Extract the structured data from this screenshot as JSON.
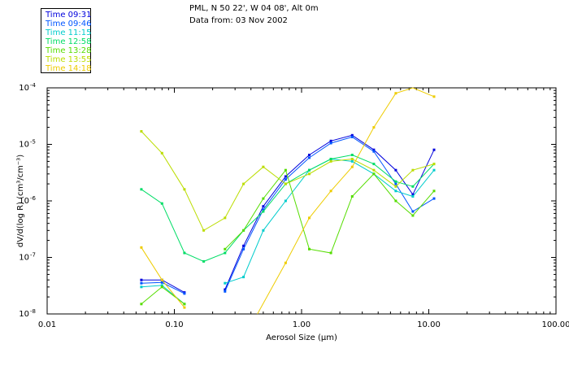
{
  "header": {
    "location": "PML, N 50 22', W 04 08', Alt 0m",
    "date": "Data from: 03 Nov 2002"
  },
  "chart_data": {
    "type": "line",
    "title": "PML, N 50 22', W 04 08', Alt 0m",
    "subtitle": "Data from: 03 Nov 2002",
    "xlabel": "Aerosol Size (µm)",
    "ylabel": "dV/d(log R) (cm³/cm⁻³)",
    "xscale": "log",
    "yscale": "log",
    "xlim": [
      0.01,
      100
    ],
    "ylim": [
      1e-08,
      0.0001
    ],
    "x_tick_labels": [
      "0.01",
      "0.10",
      "1.00",
      "10.00",
      "100.00"
    ],
    "y_tick_labels": [
      {
        "base": "10",
        "exp": "-8"
      },
      {
        "base": "10",
        "exp": "-7"
      },
      {
        "base": "10",
        "exp": "-6"
      },
      {
        "base": "10",
        "exp": "-5"
      },
      {
        "base": "10",
        "exp": "-4"
      }
    ],
    "legend_position": "top-left",
    "series": [
      {
        "name": "Time 09:31",
        "color": "#0000dd",
        "segments": [
          {
            "x": [
              0.055,
              0.08,
              0.12
            ],
            "y": [
              4e-08,
              4e-08,
              2.4e-08
            ]
          },
          {
            "x": [
              0.25,
              0.35,
              0.5,
              0.75,
              1.15,
              1.7,
              2.5,
              3.7,
              5.5,
              7.5,
              11
            ],
            "y": [
              2.7e-08,
              1.6e-07,
              8e-07,
              2.7e-06,
              6.5e-06,
              1.15e-05,
              1.45e-05,
              8e-06,
              3.5e-06,
              1.3e-06,
              8e-06
            ]
          }
        ]
      },
      {
        "name": "Time 09:46",
        "color": "#0055ff",
        "segments": [
          {
            "x": [
              0.055,
              0.08,
              0.12
            ],
            "y": [
              3.5e-08,
              3.6e-08,
              2.3e-08
            ]
          },
          {
            "x": [
              0.25,
              0.35,
              0.5,
              0.75,
              1.15,
              1.7,
              2.5,
              3.7,
              5.5,
              7.5,
              11
            ],
            "y": [
              2.5e-08,
              1.4e-07,
              7e-07,
              2.4e-06,
              5.8e-06,
              1.05e-05,
              1.35e-05,
              7.5e-06,
              2e-06,
              6.5e-07,
              1.1e-06
            ]
          }
        ]
      },
      {
        "name": "Time 11:15",
        "color": "#00cccc",
        "segments": [
          {
            "x": [
              0.055,
              0.08,
              0.12
            ],
            "y": [
              3e-08,
              3.2e-08,
              1.5e-08
            ]
          },
          {
            "x": [
              0.25,
              0.35,
              0.5,
              0.75,
              1.15,
              1.7,
              2.5,
              3.7,
              5.5,
              7.5,
              11
            ],
            "y": [
              3.5e-08,
              4.5e-08,
              3e-07,
              1e-06,
              3.5e-06,
              5.5e-06,
              5e-06,
              3e-06,
              1.5e-06,
              1.2e-06,
              3.5e-06
            ]
          }
        ]
      },
      {
        "name": "Time 12:58",
        "color": "#00dd66",
        "segments": [
          {
            "x": [
              0.055,
              0.08,
              0.12,
              0.17,
              0.25,
              0.35,
              0.5,
              0.75,
              1.15,
              1.7,
              2.5,
              3.7,
              5.5,
              7.5,
              11
            ],
            "y": [
              1.6e-06,
              9e-07,
              1.2e-07,
              8.5e-08,
              1.2e-07,
              3e-07,
              6.5e-07,
              2e-06,
              3.5e-06,
              5.5e-06,
              6.5e-06,
              4.5e-06,
              2.2e-06,
              1.8e-06,
              4.5e-06
            ]
          }
        ]
      },
      {
        "name": "Time 13:28",
        "color": "#55dd00",
        "segments": [
          {
            "x": [
              0.055,
              0.08,
              0.12
            ],
            "y": [
              1.5e-08,
              3e-08,
              1.5e-08
            ]
          },
          {
            "x": [
              0.25,
              0.35,
              0.5,
              0.75,
              1.15,
              1.7,
              2.5,
              3.7,
              5.5,
              7.5,
              11
            ],
            "y": [
              1.4e-07,
              3e-07,
              1.1e-06,
              3.5e-06,
              1.4e-07,
              1.2e-07,
              1.2e-06,
              3e-06,
              1e-06,
              5.5e-07,
              1.5e-06
            ]
          }
        ]
      },
      {
        "name": "Time 13:55",
        "color": "#bbdd00",
        "segments": [
          {
            "x": [
              0.055,
              0.08,
              0.12,
              0.17,
              0.25,
              0.35,
              0.5,
              0.75,
              1.15,
              1.7,
              2.5,
              3.7,
              5.5,
              7.5,
              11
            ],
            "y": [
              1.7e-05,
              7e-06,
              1.6e-06,
              3e-07,
              5e-07,
              2e-06,
              4e-06,
              2e-06,
              3e-06,
              5e-06,
              5.5e-06,
              3.5e-06,
              1.8e-06,
              3.5e-06,
              4.5e-06
            ]
          }
        ]
      },
      {
        "name": "Time 14:18",
        "color": "#eecc00",
        "segments": [
          {
            "x": [
              0.055,
              0.08,
              0.12
            ],
            "y": [
              1.5e-07,
              4e-08,
              1.3e-08
            ]
          },
          {
            "x": [
              0.45,
              0.75,
              1.15,
              1.7,
              2.5,
              3.7,
              5.5,
              7.5,
              11
            ],
            "y": [
              1e-08,
              8e-08,
              5e-07,
              1.5e-06,
              4e-06,
              2e-05,
              8e-05,
              0.00015,
              7e-05
            ]
          }
        ]
      }
    ]
  }
}
